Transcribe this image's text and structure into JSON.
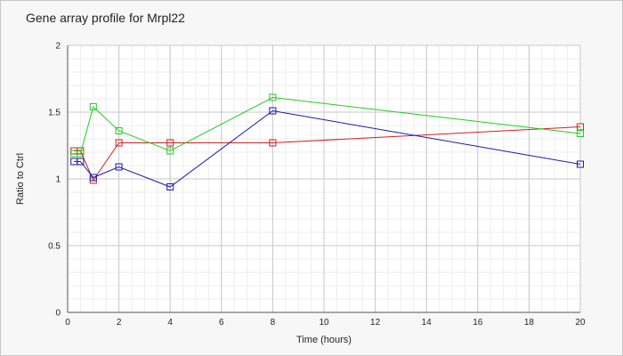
{
  "chart_data": {
    "type": "line",
    "title": "Gene array profile for Mrpl22",
    "xlabel": "Time (hours)",
    "ylabel": "Ratio to Ctrl",
    "xlim": [
      0,
      20
    ],
    "ylim": [
      0,
      2
    ],
    "x_ticks": [
      0,
      2,
      4,
      6,
      8,
      10,
      12,
      14,
      16,
      18,
      20
    ],
    "y_ticks": [
      0,
      0.5,
      1,
      1.5,
      2
    ],
    "grid": true,
    "series": [
      {
        "color": "#cc2222",
        "x": [
          0.25,
          0.5,
          1,
          2,
          4,
          8,
          20
        ],
        "values": [
          1.21,
          1.21,
          0.99,
          1.27,
          1.27,
          1.27,
          1.39
        ]
      },
      {
        "color": "#22cc22",
        "x": [
          0.25,
          0.5,
          1,
          2,
          4,
          8,
          20
        ],
        "values": [
          1.19,
          1.19,
          1.54,
          1.36,
          1.21,
          1.61,
          1.34
        ]
      },
      {
        "color": "#1a1aaa",
        "x": [
          0.25,
          0.5,
          1,
          2,
          4,
          8,
          20
        ],
        "values": [
          1.13,
          1.13,
          1.01,
          1.09,
          0.94,
          1.51,
          1.11
        ]
      }
    ]
  }
}
